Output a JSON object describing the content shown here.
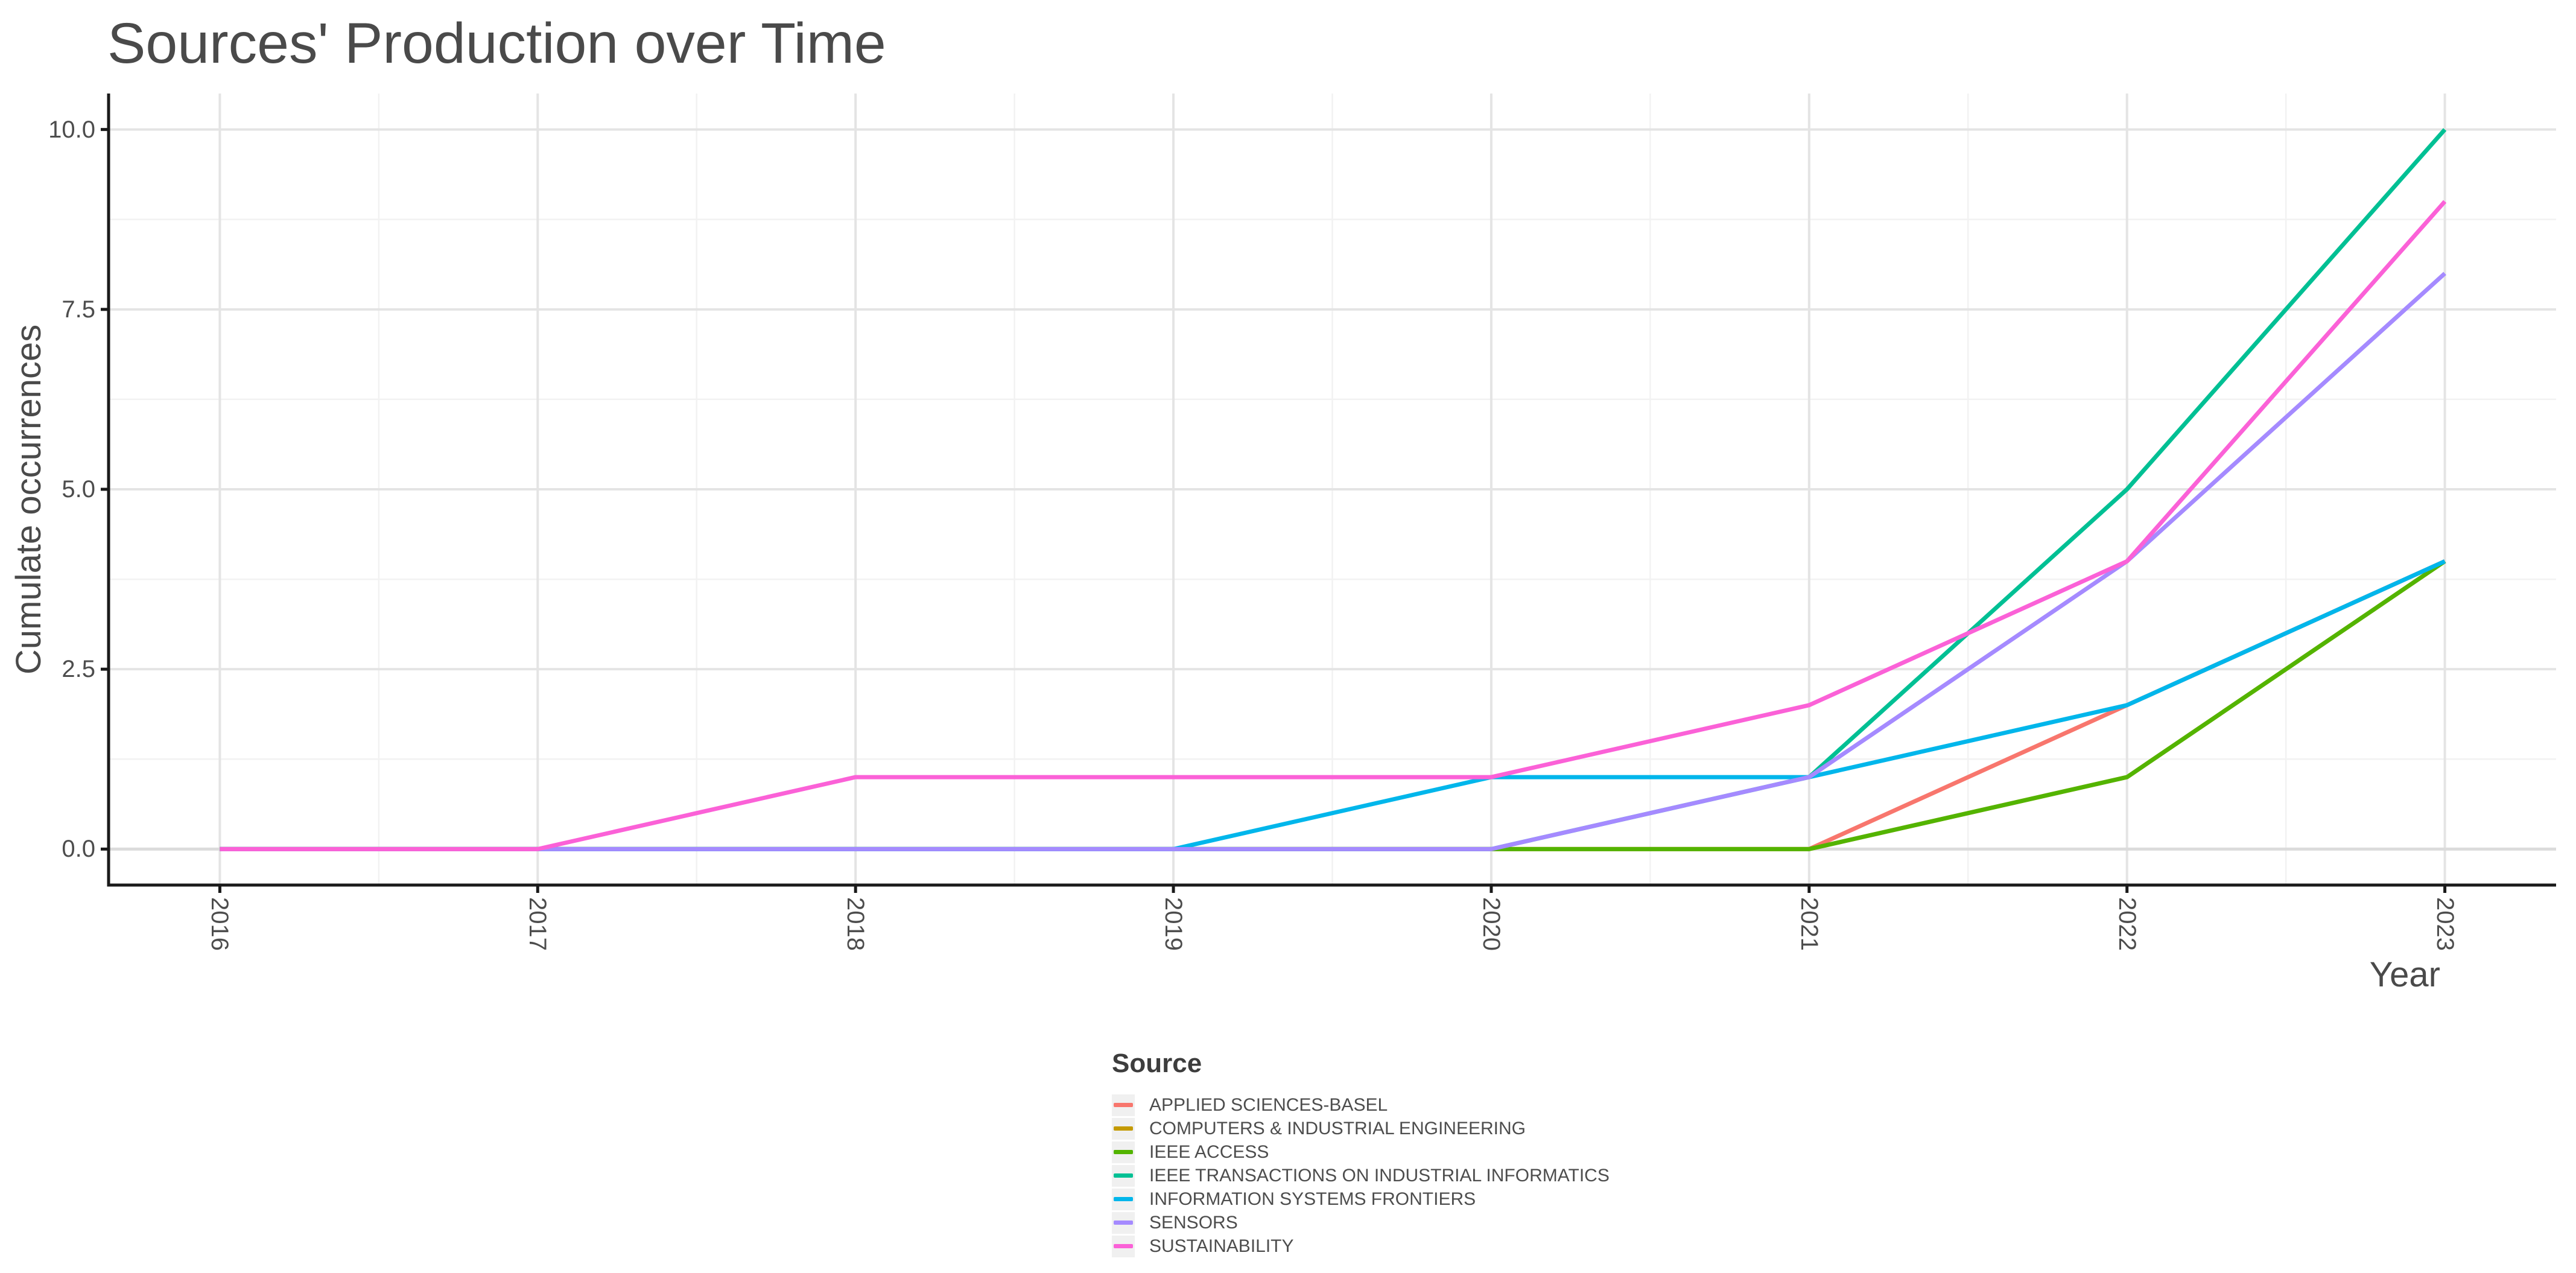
{
  "header": {
    "title": "Sources' Production over Time"
  },
  "legend": {
    "title": "Source"
  },
  "chart_data": {
    "type": "line",
    "title": "Sources' Production over Time",
    "xlabel": "Year",
    "ylabel": "Cumulate occurrences",
    "x": [
      2016,
      2017,
      2018,
      2019,
      2020,
      2021,
      2022,
      2023
    ],
    "x_tick_labels": [
      "2016",
      "2017",
      "2018",
      "2019",
      "2020",
      "2021",
      "2022",
      "2023"
    ],
    "y_ticks": [
      0,
      2.5,
      5,
      7.5,
      10
    ],
    "y_tick_labels": [
      "0.0",
      "2.5",
      "5.0",
      "7.5",
      "10.0"
    ],
    "y_minor_ticks": [
      1.25,
      3.75,
      6.25,
      8.75
    ],
    "x_minor_ticks": [
      2016.5,
      2017.5,
      2018.5,
      2019.5,
      2020.5,
      2021.5,
      2022.5
    ],
    "xlim": [
      2015.65,
      2023.35
    ],
    "ylim": [
      -0.5,
      10.5
    ],
    "grid": "on",
    "legend_position": "bottom",
    "series": [
      {
        "name": "APPLIED SCIENCES-BASEL",
        "color": "#F8766D",
        "values": [
          0,
          0,
          0,
          0,
          0,
          0,
          2,
          4
        ]
      },
      {
        "name": "COMPUTERS & INDUSTRIAL ENGINEERING",
        "color": "#C49A00",
        "values": [
          0,
          0,
          0,
          0,
          0,
          0,
          1,
          4
        ]
      },
      {
        "name": "IEEE ACCESS",
        "color": "#53B400",
        "values": [
          0,
          0,
          0,
          0,
          0,
          0,
          1,
          4
        ]
      },
      {
        "name": "IEEE TRANSACTIONS ON INDUSTRIAL INFORMATICS",
        "color": "#00C094",
        "values": [
          0,
          0,
          0,
          0,
          0,
          1,
          5,
          10
        ]
      },
      {
        "name": "INFORMATION SYSTEMS FRONTIERS",
        "color": "#00B6EB",
        "values": [
          0,
          0,
          0,
          0,
          1,
          1,
          2,
          4
        ]
      },
      {
        "name": "SENSORS",
        "color": "#A58AFF",
        "values": [
          0,
          0,
          0,
          0,
          0,
          1,
          4,
          8
        ]
      },
      {
        "name": "SUSTAINABILITY",
        "color": "#FB61D7",
        "values": [
          0,
          0,
          1,
          1,
          1,
          2,
          4,
          9
        ]
      }
    ],
    "colors": {
      "grid_major": "#e4e4e4",
      "grid_minor": "#f2f2f2",
      "grid_zero": "#dbdbdb",
      "axis": "#1a1a1a",
      "text": "#4d4d4d"
    }
  }
}
